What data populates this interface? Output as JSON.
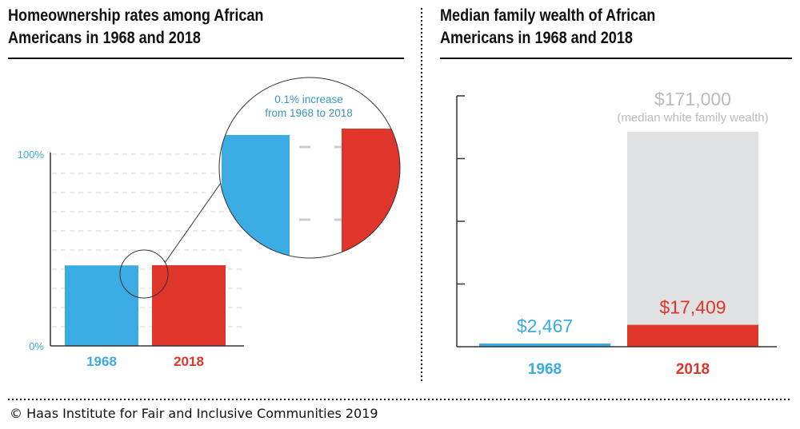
{
  "colors": {
    "blue": "#3aabe3",
    "red": "#e0352b",
    "gray": "#e0e1e2",
    "grayText": "#b9bbbd",
    "axis": "#333333"
  },
  "footer": "© Haas Institute for Fair and Inclusive Communities 2019",
  "chart_data": [
    {
      "type": "bar",
      "title": "Homeownership rates among African Americans in 1968 and 2018",
      "title_lines": [
        "Homeownership rates among African",
        "Americans in 1968 and 2018"
      ],
      "categories": [
        "1968",
        "2018"
      ],
      "values": [
        42,
        42.1
      ],
      "ylim": [
        0,
        100
      ],
      "yticks": [
        "0%",
        "100%"
      ],
      "grid": "dashed, every 10%",
      "annotation_lines": [
        "0.1% increase",
        "from 1968 to 2018"
      ]
    },
    {
      "type": "bar",
      "title": "Median family wealth of African Americans in 1968 and 2018",
      "title_lines": [
        "Median family wealth of African",
        "Americans in 1968 and 2018"
      ],
      "categories": [
        "1968",
        "2018"
      ],
      "values": [
        2467,
        17409
      ],
      "value_labels": [
        "$2,467",
        "$17,409"
      ],
      "reference": {
        "value": 171000,
        "label": "$171,000",
        "sublabel": "(median white family wealth)",
        "category": "2018"
      },
      "ylim": [
        0,
        200000
      ]
    }
  ]
}
